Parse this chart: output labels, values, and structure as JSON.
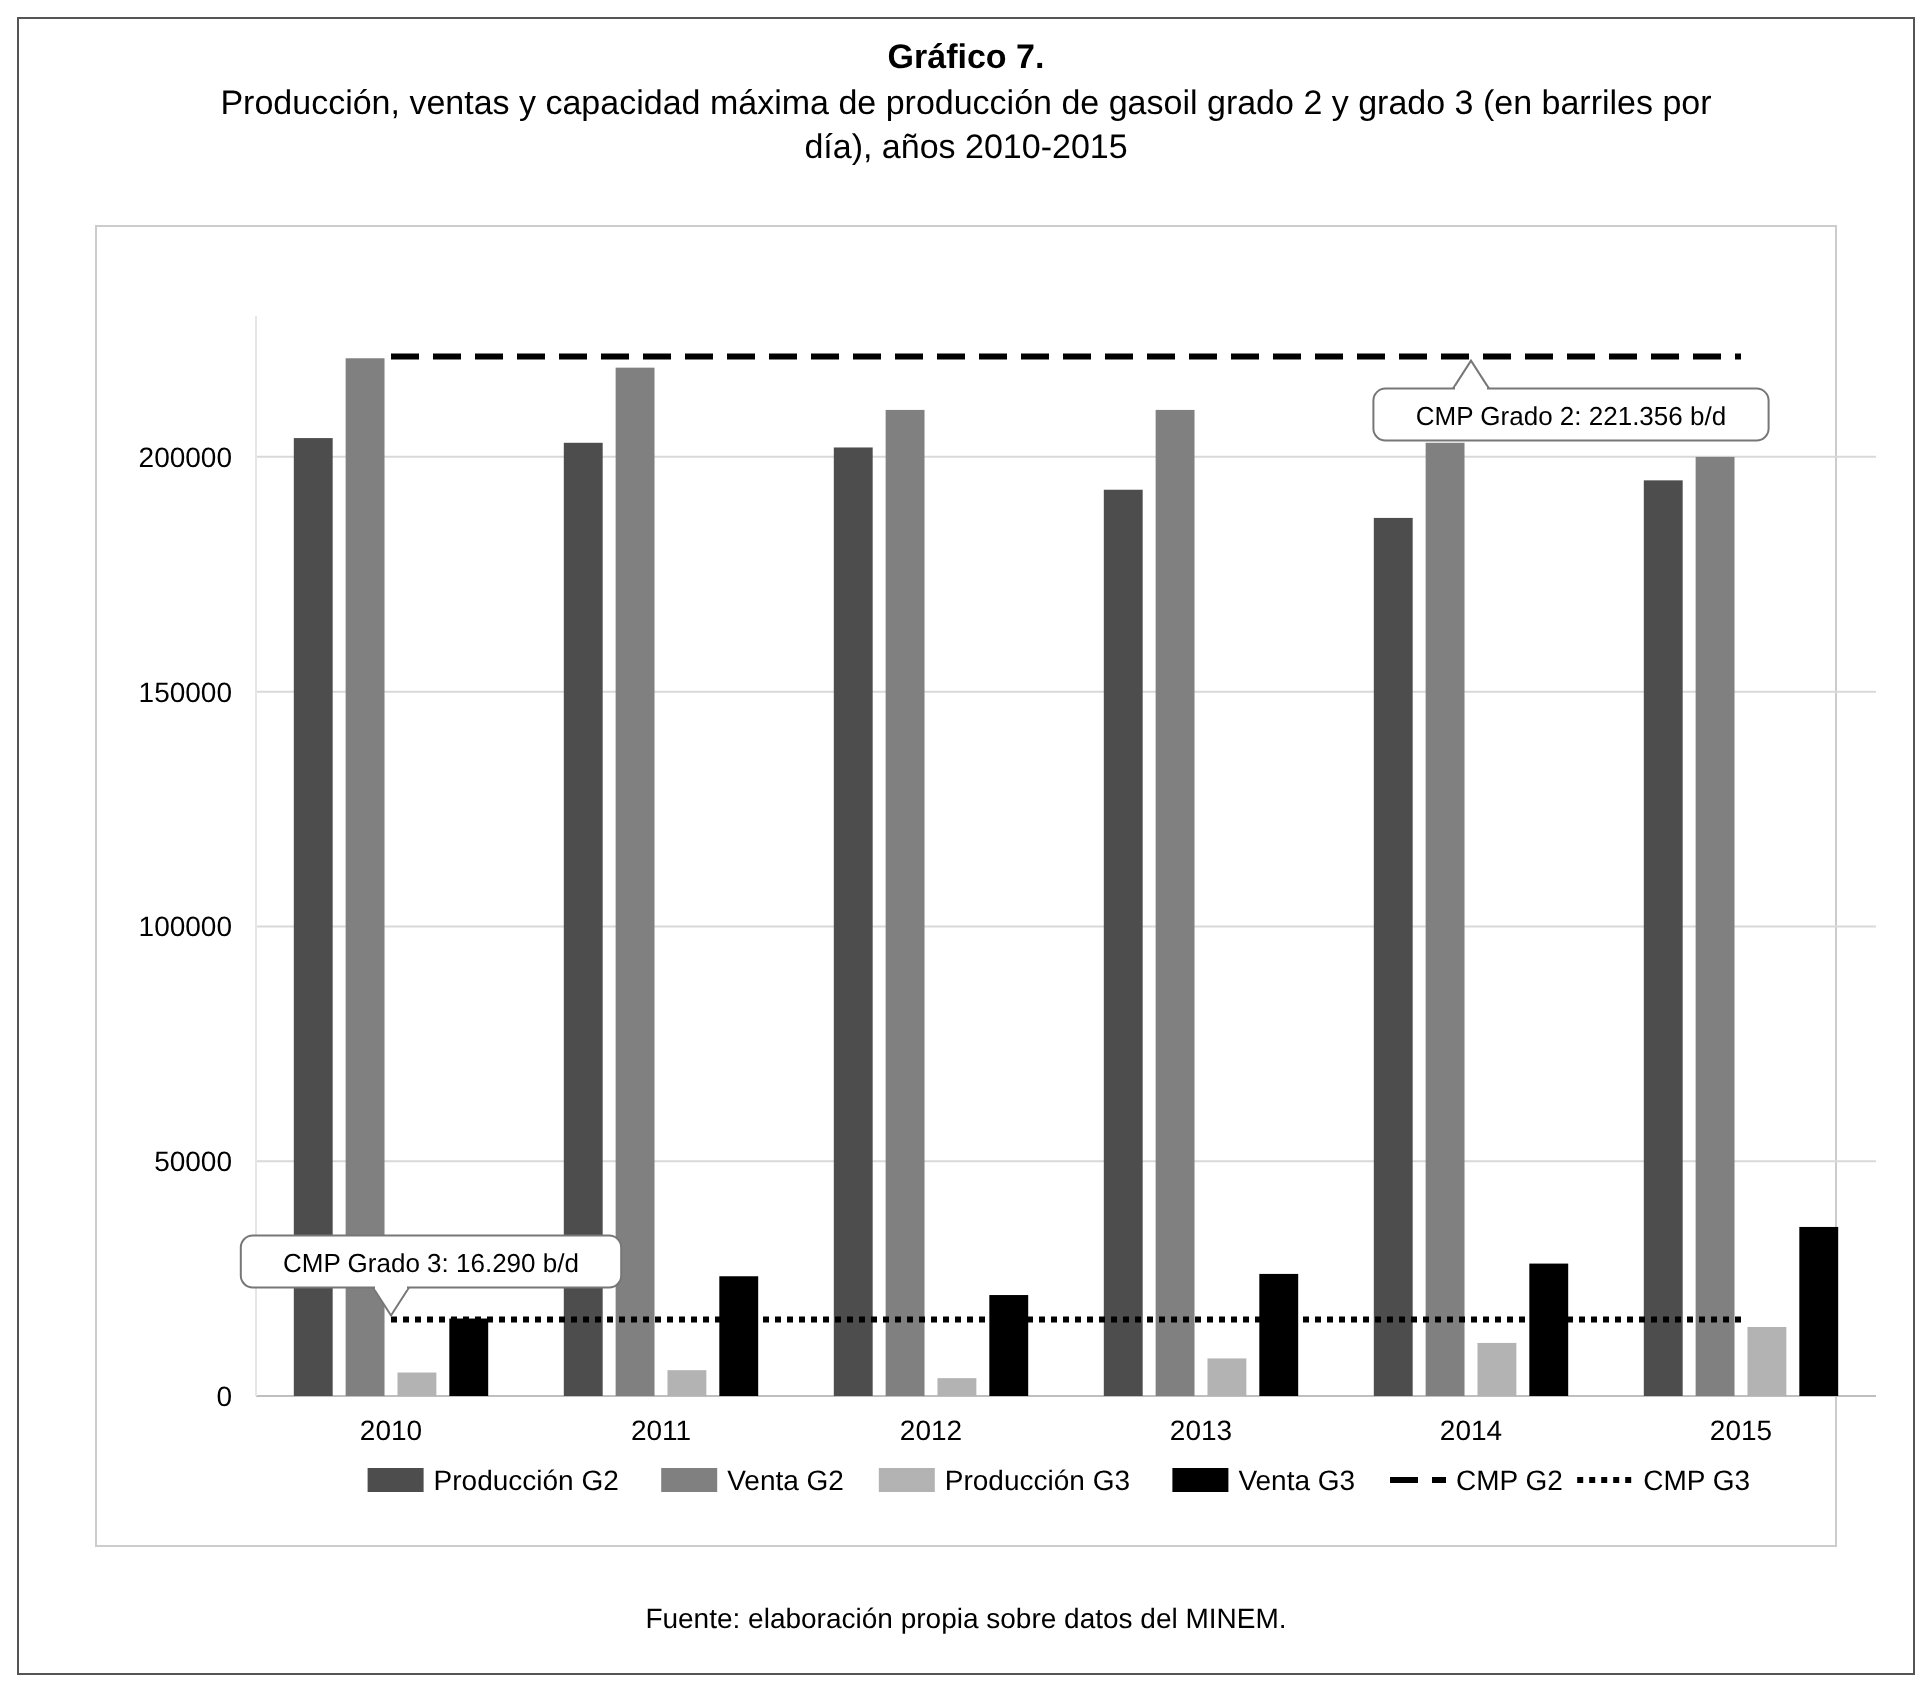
{
  "chart_data": {
    "type": "bar",
    "title": "Gráfico 7.",
    "subtitle": "Producción, ventas y capacidad máxima de producción de gasoil grado 2 y grado 3 (en barriles por día), años 2010-2015",
    "categories": [
      "2010",
      "2011",
      "2012",
      "2013",
      "2014",
      "2015"
    ],
    "series": [
      {
        "name": "Producción G2",
        "color": "#4d4d4d",
        "values": [
          204000,
          203000,
          202000,
          193000,
          187000,
          195000
        ]
      },
      {
        "name": "Venta G2",
        "color": "#808080",
        "values": [
          221000,
          219000,
          210000,
          210000,
          203000,
          200000
        ]
      },
      {
        "name": "Producción G3",
        "color": "#b3b3b3",
        "values": [
          5000,
          5500,
          3800,
          8000,
          11300,
          14700
        ]
      },
      {
        "name": "Venta G3",
        "color": "#000000",
        "values": [
          16500,
          25500,
          21500,
          26000,
          28200,
          36000
        ]
      },
      {
        "name": "CMP G2",
        "type": "line",
        "color": "#000000",
        "line_style": "dashed",
        "values": [
          221356,
          221356,
          221356,
          221356,
          221356,
          221356
        ]
      },
      {
        "name": "CMP G3",
        "type": "line",
        "color": "#000000",
        "line_style": "dotted",
        "values": [
          16290,
          16290,
          16290,
          16290,
          16290,
          16290
        ]
      }
    ],
    "ylim": [
      0,
      230000
    ],
    "yticks": [
      0,
      50000,
      100000,
      150000,
      200000
    ],
    "grid": "y",
    "legend": "bottom",
    "annotations": [
      {
        "text": "CMP Grado 2: 221.356 b/d",
        "x": "2014",
        "y": 221356
      },
      {
        "text": "CMP Grado 3: 16.290 b/d",
        "x": "2010",
        "y": 16290
      },
      "Fuente: elaboración propia sobre datos del MINEM."
    ]
  }
}
